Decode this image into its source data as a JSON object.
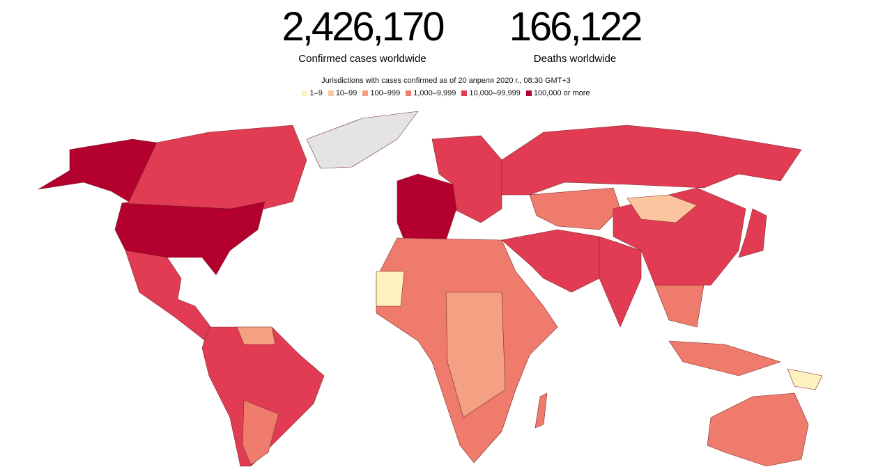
{
  "header": {
    "stats": [
      {
        "value": "2,426,170",
        "label": "Confirmed cases worldwide"
      },
      {
        "value": "166,122",
        "label": "Deaths worldwide"
      }
    ]
  },
  "subtitle": "Jurisdictions with cases confirmed as of 20 апреля 2020 г., 08:30 GMT+3",
  "legend": {
    "items": [
      {
        "label": "1–9",
        "color": "#fdf1bf"
      },
      {
        "label": "10–99",
        "color": "#fbc69f"
      },
      {
        "label": "100–999",
        "color": "#f4a083"
      },
      {
        "label": "1,000–9,999",
        "color": "#ef7b6c"
      },
      {
        "label": "10,000–99,999",
        "color": "#e23c54"
      },
      {
        "label": "100,000 or more",
        "color": "#b4002f"
      }
    ],
    "no_data_color": "#e4e4e4"
  }
}
